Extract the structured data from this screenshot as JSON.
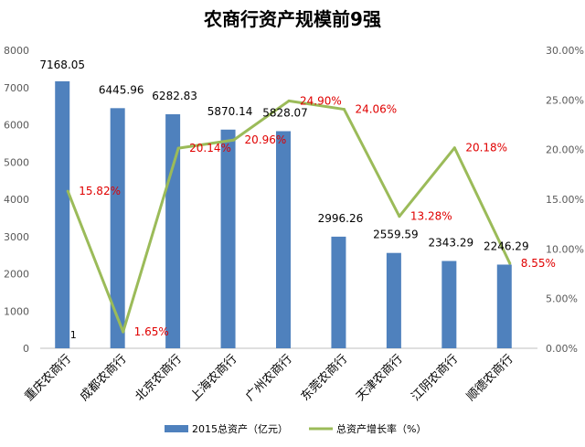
{
  "chart_data": {
    "type": "bar",
    "title": "农商行资产规模前9强",
    "categories": [
      "重庆农商行",
      "成都农商行",
      "北京农商行",
      "上海农商行",
      "广州农商行",
      "东莞农商行",
      "天津农商行",
      "江阴农商行",
      "顺德农商行"
    ],
    "series": [
      {
        "name": "2015总资产（亿元）",
        "type": "bar",
        "axis": "left",
        "color": "#4f81bd",
        "values": [
          7168.05,
          6445.96,
          6282.83,
          5870.14,
          5828.07,
          2996.26,
          2559.59,
          2343.29,
          2246.29
        ],
        "labels": [
          "7168.05",
          "6445.96",
          "6282.83",
          "5870.14",
          "5828.07",
          "2996.26",
          "2559.59",
          "2343.29",
          "2246.29"
        ]
      },
      {
        "name": "总资产增长率（%）",
        "type": "line",
        "axis": "right",
        "color": "#9bbb59",
        "values": [
          15.82,
          1.65,
          20.14,
          20.96,
          24.9,
          24.06,
          13.28,
          20.18,
          8.55
        ],
        "labels": [
          "15.82%",
          "1.65%",
          "20.14%",
          "20.96%",
          "24.90%",
          "24.06%",
          "13.28%",
          "20.18%",
          "8.55%"
        ]
      }
    ],
    "y_left": {
      "min": 0,
      "max": 8000,
      "step": 1000,
      "ticks": [
        "0",
        "1000",
        "2000",
        "3000",
        "4000",
        "5000",
        "6000",
        "7000",
        "8000"
      ]
    },
    "y_right": {
      "min": 0,
      "max": 30,
      "step": 5,
      "ticks": [
        "0.00%",
        "5.00%",
        "10.00%",
        "15.00%",
        "20.00%",
        "25.00%",
        "30.00%"
      ]
    },
    "stray_label": "1",
    "legend_position": "bottom",
    "grid": false
  }
}
